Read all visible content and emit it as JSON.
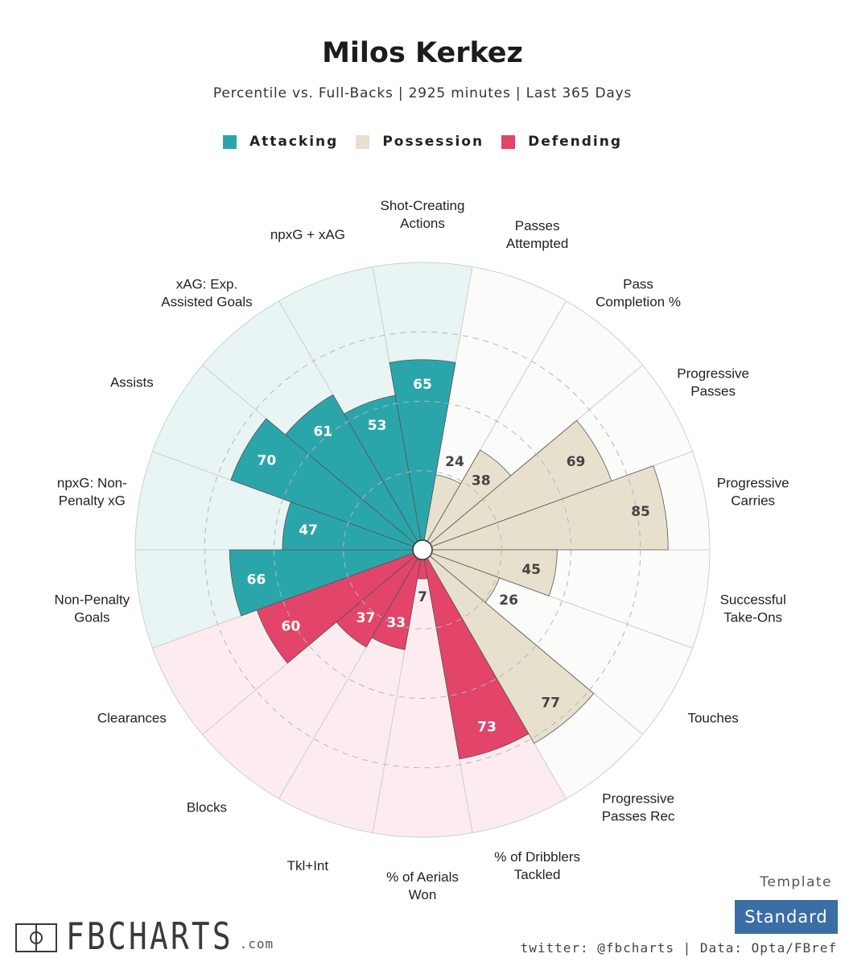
{
  "header": {
    "title": "Milos Kerkez",
    "subtitle": "Percentile vs. Full-Backs | 2925 minutes | Last 365 Days"
  },
  "legend": [
    {
      "label": "Attacking",
      "color": "#2aa6ab"
    },
    {
      "label": "Possession",
      "color": "#e7e0cc"
    },
    {
      "label": "Defending",
      "color": "#e34469"
    }
  ],
  "chart_data": {
    "type": "radar-bar",
    "range": [
      0,
      100
    ],
    "categories": [
      {
        "label": "Shot-Creating\nActions",
        "value": 65,
        "group": "Attacking"
      },
      {
        "label": "Passes\nAttempted",
        "value": 24,
        "group": "Possession"
      },
      {
        "label": "Pass\nCompletion %",
        "value": 38,
        "group": "Possession"
      },
      {
        "label": "Progressive\nPasses",
        "value": 69,
        "group": "Possession"
      },
      {
        "label": "Progressive\nCarries",
        "value": 85,
        "group": "Possession"
      },
      {
        "label": "Successful\nTake-Ons",
        "value": 45,
        "group": "Possession"
      },
      {
        "label": "Touches",
        "value": 26,
        "group": "Possession"
      },
      {
        "label": "Progressive\nPasses Rec",
        "value": 77,
        "group": "Possession"
      },
      {
        "label": "% of Dribblers\nTackled",
        "value": 73,
        "group": "Defending"
      },
      {
        "label": "% of Aerials\nWon",
        "value": 7,
        "group": "Defending"
      },
      {
        "label": "Tkl+Int",
        "value": 33,
        "group": "Defending"
      },
      {
        "label": "Blocks",
        "value": 37,
        "group": "Defending"
      },
      {
        "label": "Clearances",
        "value": 60,
        "group": "Defending"
      },
      {
        "label": "Non-Penalty\nGoals",
        "value": 66,
        "group": "Attacking"
      },
      {
        "label": "npxG: Non-\nPenalty xG",
        "value": 47,
        "group": "Attacking"
      },
      {
        "label": "Assists",
        "value": 70,
        "group": "Attacking"
      },
      {
        "label": "xAG: Exp.\nAssisted Goals",
        "value": 61,
        "group": "Attacking"
      },
      {
        "label": "npxG + xAG",
        "value": 53,
        "group": "Attacking"
      }
    ],
    "group_colors": {
      "Attacking": {
        "fill": "#2aa6ab",
        "bg": "#e9f5f5",
        "text": "#ffffff"
      },
      "Possession": {
        "fill": "#e7e0cc",
        "bg": "#fbfbfa",
        "text": "#444444"
      },
      "Defending": {
        "fill": "#e34469",
        "bg": "#fcecf0",
        "text": "#ffffff"
      }
    }
  },
  "footer": {
    "logo_text": "FBCHARTS",
    "logo_suffix": ".com",
    "template_label": "Template",
    "template_value": "Standard",
    "credits": "twitter: @fbcharts | Data: Opta/FBref"
  }
}
